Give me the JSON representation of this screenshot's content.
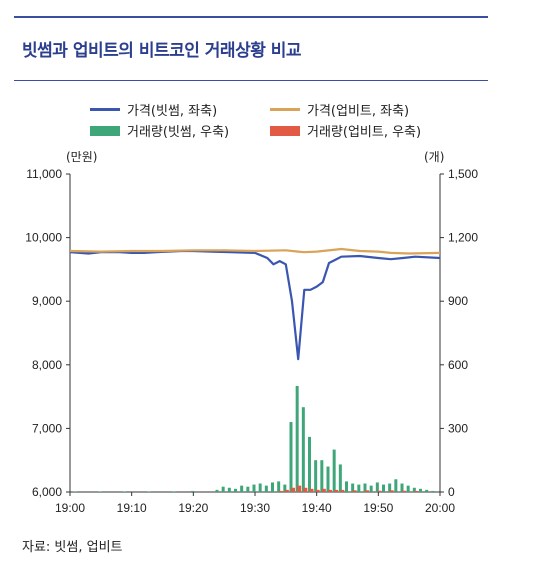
{
  "title": "빗썸과 업비트의 비트코인 거래상황 비교",
  "source": "자료: 빗썸, 업비트",
  "legend": {
    "price_bithumb": "가격(빗썸, 좌축)",
    "price_upbit": "가격(업비트, 좌축)",
    "volume_bithumb": "거래량(빗썸, 우축)",
    "volume_upbit": "거래량(업비트, 우축)"
  },
  "colors": {
    "price_bithumb": "#3a56b0",
    "price_upbit": "#d9a35a",
    "volume_bithumb": "#3fa67a",
    "volume_upbit": "#e05a44"
  },
  "chart_data": {
    "type": "line",
    "title": "빗썸과 업비트의 비트코인 거래상황 비교",
    "x_tick_labels": [
      "19:00",
      "19:10",
      "19:20",
      "19:30",
      "19:40",
      "19:50",
      "20:00"
    ],
    "x_minutes": [
      0,
      60
    ],
    "left_axis": {
      "unit": "(만원)",
      "ylim": [
        6000,
        11000
      ],
      "ticks": [
        6000,
        7000,
        8000,
        9000,
        10000,
        11000
      ]
    },
    "right_axis": {
      "unit": "(개)",
      "ylim": [
        0,
        1500
      ],
      "ticks": [
        0,
        300,
        600,
        900,
        1200,
        1500
      ]
    },
    "series": [
      {
        "name": "가격(빗썸, 좌축)",
        "axis": "left",
        "kind": "line",
        "points": [
          [
            0,
            9770
          ],
          [
            3,
            9750
          ],
          [
            5,
            9770
          ],
          [
            8,
            9770
          ],
          [
            10,
            9760
          ],
          [
            12,
            9760
          ],
          [
            14,
            9770
          ],
          [
            18,
            9790
          ],
          [
            20,
            9790
          ],
          [
            23,
            9780
          ],
          [
            26,
            9770
          ],
          [
            30,
            9760
          ],
          [
            32,
            9680
          ],
          [
            33,
            9580
          ],
          [
            34,
            9630
          ],
          [
            35,
            9580
          ],
          [
            36,
            9000
          ],
          [
            37,
            8090
          ],
          [
            38,
            9180
          ],
          [
            39,
            9180
          ],
          [
            40,
            9230
          ],
          [
            41,
            9300
          ],
          [
            42,
            9600
          ],
          [
            43,
            9650
          ],
          [
            44,
            9700
          ],
          [
            47,
            9710
          ],
          [
            50,
            9680
          ],
          [
            52,
            9660
          ],
          [
            54,
            9680
          ],
          [
            56,
            9700
          ],
          [
            60,
            9680
          ]
        ]
      },
      {
        "name": "가격(업비트, 좌축)",
        "axis": "left",
        "kind": "line",
        "points": [
          [
            0,
            9790
          ],
          [
            5,
            9780
          ],
          [
            10,
            9790
          ],
          [
            15,
            9790
          ],
          [
            20,
            9800
          ],
          [
            25,
            9800
          ],
          [
            30,
            9790
          ],
          [
            35,
            9800
          ],
          [
            37,
            9780
          ],
          [
            38,
            9770
          ],
          [
            40,
            9780
          ],
          [
            44,
            9820
          ],
          [
            47,
            9790
          ],
          [
            50,
            9780
          ],
          [
            52,
            9760
          ],
          [
            55,
            9750
          ],
          [
            60,
            9760
          ]
        ]
      },
      {
        "name": "거래량(빗썸, 우축)",
        "axis": "right",
        "kind": "bar",
        "points": [
          [
            1,
            3
          ],
          [
            5,
            3
          ],
          [
            9,
            3
          ],
          [
            13,
            3
          ],
          [
            17,
            3
          ],
          [
            20,
            5
          ],
          [
            24,
            10
          ],
          [
            25,
            25
          ],
          [
            26,
            20
          ],
          [
            27,
            15
          ],
          [
            28,
            30
          ],
          [
            29,
            25
          ],
          [
            30,
            35
          ],
          [
            31,
            40
          ],
          [
            32,
            30
          ],
          [
            33,
            45
          ],
          [
            34,
            50
          ],
          [
            35,
            35
          ],
          [
            36,
            330
          ],
          [
            37,
            500
          ],
          [
            38,
            400
          ],
          [
            39,
            260
          ],
          [
            40,
            150
          ],
          [
            41,
            150
          ],
          [
            42,
            120
          ],
          [
            43,
            200
          ],
          [
            44,
            130
          ],
          [
            45,
            50
          ],
          [
            46,
            40
          ],
          [
            47,
            35
          ],
          [
            48,
            40
          ],
          [
            49,
            30
          ],
          [
            50,
            45
          ],
          [
            51,
            35
          ],
          [
            52,
            40
          ],
          [
            53,
            60
          ],
          [
            54,
            40
          ],
          [
            55,
            30
          ],
          [
            56,
            20
          ],
          [
            57,
            15
          ],
          [
            58,
            10
          ],
          [
            59,
            5
          ]
        ]
      },
      {
        "name": "거래량(업비트, 우축)",
        "axis": "right",
        "kind": "bar",
        "points": [
          [
            34,
            5
          ],
          [
            35,
            10
          ],
          [
            36,
            20
          ],
          [
            37,
            30
          ],
          [
            38,
            20
          ],
          [
            39,
            15
          ],
          [
            40,
            10
          ],
          [
            41,
            15
          ],
          [
            42,
            10
          ],
          [
            43,
            10
          ],
          [
            44,
            10
          ],
          [
            46,
            8
          ],
          [
            48,
            8
          ],
          [
            50,
            6
          ],
          [
            52,
            8
          ],
          [
            54,
            6
          ],
          [
            56,
            5
          ]
        ]
      }
    ]
  }
}
